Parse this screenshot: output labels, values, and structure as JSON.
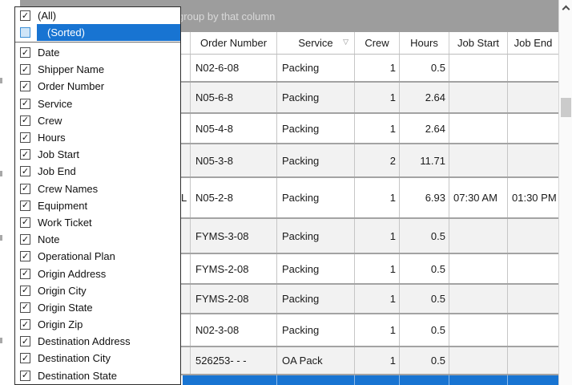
{
  "toolbar": {
    "group_by_text": "group by that column"
  },
  "filter_dropdown": {
    "special_items": [
      {
        "label": "(All)",
        "checked": true,
        "selected": false
      },
      {
        "label": "(Sorted)",
        "checked": false,
        "selected": true
      }
    ],
    "items": [
      {
        "label": "Date",
        "checked": true
      },
      {
        "label": "Shipper Name",
        "checked": true
      },
      {
        "label": "Order Number",
        "checked": true
      },
      {
        "label": "Service",
        "checked": true
      },
      {
        "label": "Crew",
        "checked": true
      },
      {
        "label": "Hours",
        "checked": true
      },
      {
        "label": "Job Start",
        "checked": true
      },
      {
        "label": "Job End",
        "checked": true
      },
      {
        "label": "Crew Names",
        "checked": true
      },
      {
        "label": "Equipment",
        "checked": true
      },
      {
        "label": "Work Ticket",
        "checked": true
      },
      {
        "label": "Note",
        "checked": true
      },
      {
        "label": "Operational Plan",
        "checked": true
      },
      {
        "label": "Origin Address",
        "checked": true
      },
      {
        "label": "Origin City",
        "checked": true
      },
      {
        "label": "Origin State",
        "checked": true
      },
      {
        "label": "Origin Zip",
        "checked": true
      },
      {
        "label": "Destination Address",
        "checked": true
      },
      {
        "label": "Destination City",
        "checked": true
      },
      {
        "label": "Destination State",
        "checked": true
      }
    ]
  },
  "table": {
    "columns": [
      {
        "label": "Order Number"
      },
      {
        "label": "Service",
        "has_filter_icon": true
      },
      {
        "label": "Crew"
      },
      {
        "label": "Hours"
      },
      {
        "label": "Job Start"
      },
      {
        "label": "Job End"
      }
    ],
    "rows": [
      {
        "order_number": "N02-6-08",
        "service": "Packing",
        "crew": 1,
        "hours": 0.5
      },
      {
        "order_number": "N05-6-8",
        "service": "Packing",
        "crew": 1,
        "hours": 2.64
      },
      {
        "order_number": "N05-4-8",
        "service": "Packing",
        "crew": 1,
        "hours": 2.64
      },
      {
        "order_number": "N05-3-8",
        "service": "Packing",
        "crew": 2,
        "hours": 11.71
      },
      {
        "order_number": "N05-2-8",
        "service": "Packing",
        "crew": 1,
        "hours": 6.93,
        "job_start": "07:30 AM",
        "job_end": "01:30 PM",
        "clipped_text_left": "L"
      },
      {
        "order_number": "FYMS-3-08",
        "service": "Packing",
        "crew": 1,
        "hours": 0.5
      },
      {
        "order_number": "FYMS-2-08",
        "service": "Packing",
        "crew": 1,
        "hours": 0.5
      },
      {
        "order_number": "FYMS-2-08",
        "service": "Packing",
        "crew": 1,
        "hours": 0.5
      },
      {
        "order_number": "N02-3-08",
        "service": "Packing",
        "crew": 1,
        "hours": 0.5
      },
      {
        "order_number": "526253- - -",
        "service": "OA Pack",
        "crew": 1,
        "hours": 0.5
      }
    ]
  },
  "icons": {
    "filter": "▽",
    "chevron_up": "^",
    "checkmark": "✓"
  },
  "colors": {
    "selection_blue": "#1874d2",
    "toolbar_gray": "#9d9d9d",
    "alt_row_gray": "#f2f2f2",
    "row_separator": "#a3a3a3",
    "unchecked_blue_fill": "#cfe5f8"
  }
}
